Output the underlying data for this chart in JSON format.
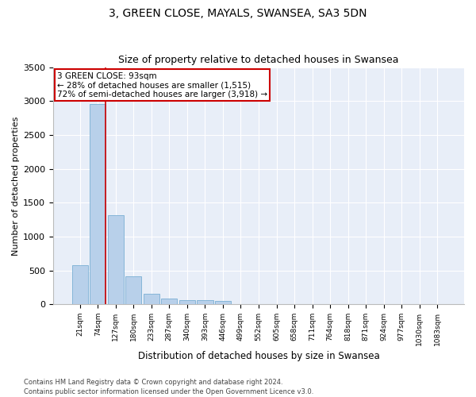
{
  "title": "3, GREEN CLOSE, MAYALS, SWANSEA, SA3 5DN",
  "subtitle": "Size of property relative to detached houses in Swansea",
  "xlabel": "Distribution of detached houses by size in Swansea",
  "ylabel": "Number of detached properties",
  "footer_line1": "Contains HM Land Registry data © Crown copyright and database right 2024.",
  "footer_line2": "Contains public sector information licensed under the Open Government Licence v3.0.",
  "categories": [
    "21sqm",
    "74sqm",
    "127sqm",
    "180sqm",
    "233sqm",
    "287sqm",
    "340sqm",
    "393sqm",
    "446sqm",
    "499sqm",
    "552sqm",
    "605sqm",
    "658sqm",
    "711sqm",
    "764sqm",
    "818sqm",
    "871sqm",
    "924sqm",
    "977sqm",
    "1030sqm",
    "1083sqm"
  ],
  "values": [
    575,
    2960,
    1315,
    410,
    155,
    90,
    65,
    60,
    50,
    0,
    0,
    0,
    0,
    0,
    0,
    0,
    0,
    0,
    0,
    0,
    0
  ],
  "bar_color": "#b8d0ea",
  "bar_edge_color": "#7aafd4",
  "background_color": "#e8eef8",
  "grid_color": "#ffffff",
  "vline_color": "#cc0000",
  "annotation_line1": "3 GREEN CLOSE: 93sqm",
  "annotation_line2": "← 28% of detached houses are smaller (1,515)",
  "annotation_line3": "72% of semi-detached houses are larger (3,918) →",
  "annotation_box_color": "#ffffff",
  "annotation_border_color": "#cc0000",
  "ylim": [
    0,
    3500
  ],
  "yticks": [
    0,
    500,
    1000,
    1500,
    2000,
    2500,
    3000,
    3500
  ]
}
